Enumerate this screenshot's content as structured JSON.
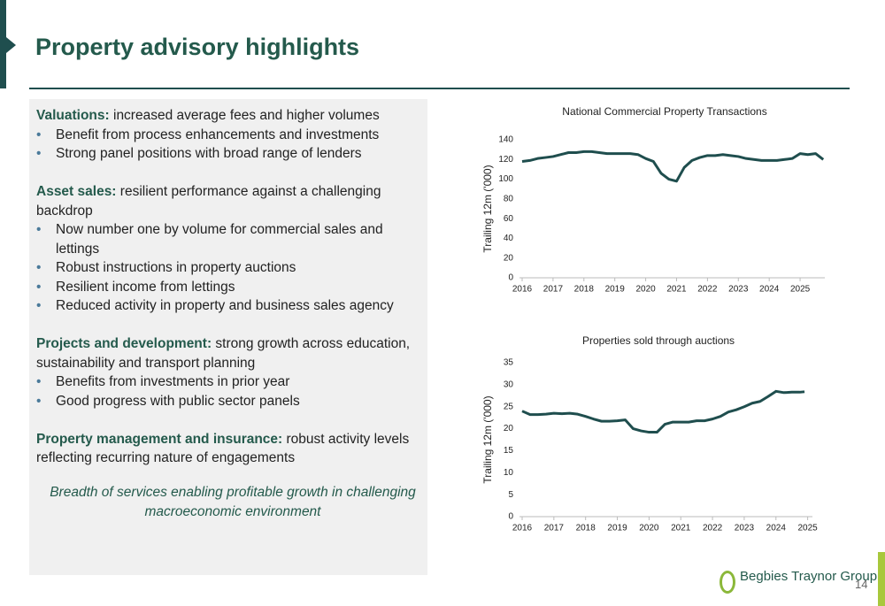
{
  "header": {
    "title": "Property advisory highlights"
  },
  "panel": {
    "sections": [
      {
        "heading": "Valuations:",
        "text": " increased average fees and higher volumes",
        "bullets": [
          "Benefit from process enhancements and investments",
          "Strong panel positions with broad range of lenders"
        ]
      },
      {
        "heading": "Asset sales:",
        "text": " resilient performance against a challenging backdrop",
        "bullets": [
          "Now number one by volume for commercial sales and lettings",
          "Robust instructions in property auctions",
          "Resilient income from lettings",
          "Reduced activity in property and business sales agency"
        ]
      },
      {
        "heading": "Projects and development:",
        "text": " strong growth across education, sustainability and transport planning",
        "bullets": [
          "Benefits from investments in prior year",
          "Good progress with public sector panels"
        ]
      },
      {
        "heading": "Property management and insurance:",
        "text": " robust activity levels reflecting recurring nature of engagements",
        "bullets": []
      }
    ],
    "tagline": "Breadth of services enabling profitable growth in challenging macroeconomic environment"
  },
  "chart_data": [
    {
      "type": "line",
      "title": "National Commercial Property Transactions",
      "y_label": "Trailing 12m ('000)",
      "x": [
        2016,
        2016.25,
        2016.5,
        2016.75,
        2017,
        2017.25,
        2017.5,
        2017.75,
        2018,
        2018.25,
        2018.5,
        2018.75,
        2019,
        2019.25,
        2019.5,
        2019.75,
        2020,
        2020.25,
        2020.5,
        2020.75,
        2021,
        2021.25,
        2021.5,
        2021.75,
        2022,
        2022.25,
        2022.5,
        2022.75,
        2023,
        2023.25,
        2023.5,
        2023.75,
        2024,
        2024.25,
        2024.5,
        2024.75,
        2025,
        2025.25,
        2025.5,
        2025.75
      ],
      "series": [
        {
          "color": "#1f4e4e",
          "values": [
            118,
            119,
            121,
            122,
            123,
            125,
            127,
            127,
            128,
            128,
            127,
            126,
            126,
            126,
            126,
            125,
            121,
            118,
            106,
            100,
            98,
            112,
            119,
            122,
            124,
            124,
            125,
            124,
            123,
            121,
            120,
            119,
            119,
            119,
            120,
            121,
            126,
            125,
            126,
            120
          ]
        }
      ],
      "xlim": [
        2016,
        2025.8
      ],
      "xticks": [
        2016,
        2017,
        2018,
        2019,
        2020,
        2021,
        2022,
        2023,
        2024,
        2025
      ],
      "ylim": [
        0,
        140
      ],
      "yticks": [
        0,
        20,
        40,
        60,
        80,
        100,
        120,
        140
      ]
    },
    {
      "type": "line",
      "title": "Properties sold through auctions",
      "y_label": "Trailing 12m ('000)",
      "x": [
        2016,
        2016.25,
        2016.5,
        2016.75,
        2017,
        2017.25,
        2017.5,
        2017.75,
        2018,
        2018.25,
        2018.5,
        2018.75,
        2019,
        2019.25,
        2019.5,
        2019.75,
        2020,
        2020.25,
        2020.5,
        2020.75,
        2021,
        2021.25,
        2021.5,
        2021.75,
        2022,
        2022.25,
        2022.5,
        2022.75,
        2023,
        2023.25,
        2023.5,
        2023.75,
        2024,
        2024.25,
        2024.5,
        2024.75,
        2024.9
      ],
      "series": [
        {
          "color": "#1f4e4e",
          "values": [
            24,
            23.2,
            23.2,
            23.3,
            23.5,
            23.4,
            23.5,
            23.3,
            22.8,
            22.2,
            21.7,
            21.7,
            21.8,
            22,
            20,
            19.5,
            19.2,
            19.2,
            21,
            21.5,
            21.5,
            21.5,
            21.8,
            21.8,
            22.2,
            22.8,
            23.8,
            24.3,
            25,
            25.8,
            26.2,
            27.3,
            28.5,
            28.2,
            28.3,
            28.3,
            28.4
          ]
        }
      ],
      "xlim": [
        2016,
        2025.15
      ],
      "xticks": [
        2016,
        2017,
        2018,
        2019,
        2020,
        2021,
        2022,
        2023,
        2024,
        2025
      ],
      "ylim": [
        0,
        35
      ],
      "yticks": [
        0,
        5,
        10,
        15,
        20,
        25,
        30,
        35
      ]
    }
  ],
  "footer": {
    "logo": "Begbies Traynor Group",
    "page": "14"
  }
}
